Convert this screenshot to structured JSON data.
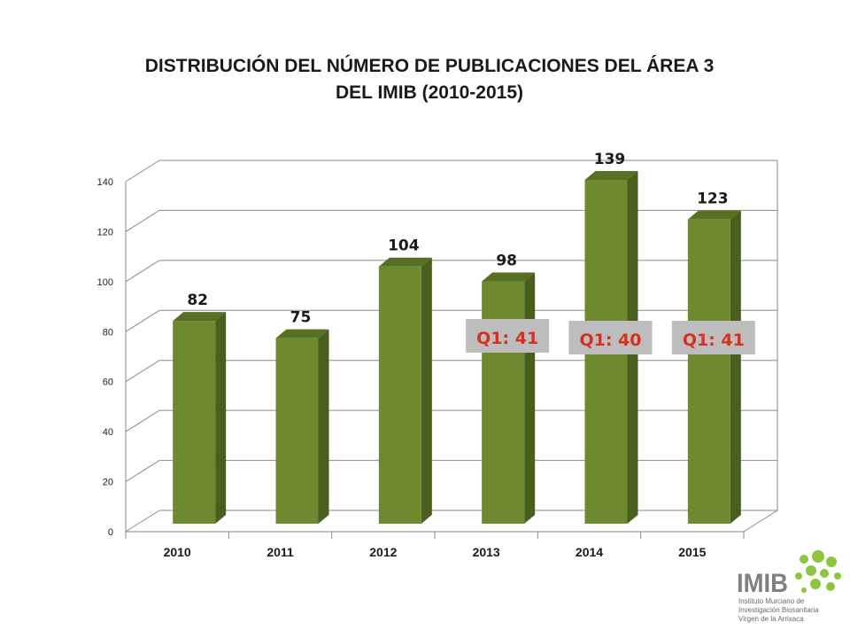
{
  "title_lines": [
    "DISTRIBUCIÓN DEL NÚMERO DE PUBLICACIONES DEL ÁREA 3",
    "DEL IMIB (2010-2015)"
  ],
  "colors": {
    "bar_front": "#6f8a2e",
    "bar_side": "#4a5e1f",
    "bar_top": "#586f24",
    "grid": "#8a8a8a",
    "q1_box_bg": "#bdbdbd",
    "q1_text": "#d7301f",
    "logo_green": "#8cc63f",
    "logo_gray": "#808080"
  },
  "chart_data": {
    "type": "bar",
    "title": "DISTRIBUCIÓN DEL NÚMERO DE PUBLICACIONES DEL ÁREA 3 DEL IMIB (2010-2015)",
    "categories": [
      "2010",
      "2011",
      "2012",
      "2013",
      "2014",
      "2015"
    ],
    "values": [
      82,
      75,
      104,
      98,
      139,
      123
    ],
    "data_labels": [
      "82",
      "75",
      "104",
      "98",
      "139",
      "123"
    ],
    "ylim": [
      0,
      140
    ],
    "yticks": [
      0,
      20,
      40,
      60,
      80,
      100,
      120,
      140
    ],
    "ytick_labels": [
      "0",
      "20",
      "40",
      "60",
      "80",
      "100",
      "120",
      "140"
    ],
    "grid": true,
    "style": "3d-column",
    "annotations": [
      {
        "category": "2013",
        "text": "Q1: 41"
      },
      {
        "category": "2014",
        "text": "Q1: 40"
      },
      {
        "category": "2015",
        "text": "Q1: 41"
      }
    ]
  },
  "logo": {
    "wordmark": "IMIB",
    "tagline_lines": [
      "Instituto Murciano de",
      "Investigación Biosanitaria",
      "Virgen de la Arrixaca"
    ]
  }
}
